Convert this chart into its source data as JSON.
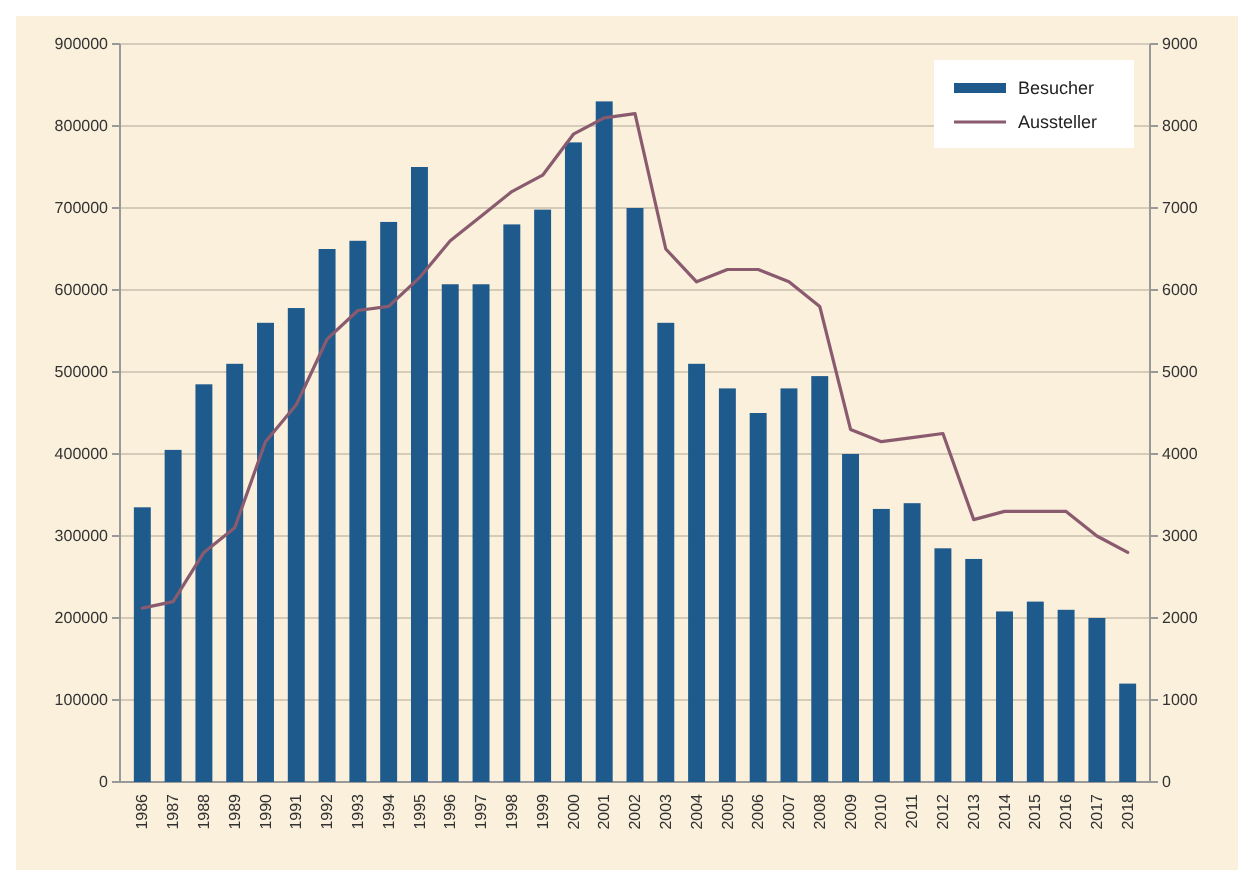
{
  "chart_data": {
    "type": "bar",
    "categories": [
      "1986",
      "1987",
      "1988",
      "1989",
      "1990",
      "1991",
      "1992",
      "1993",
      "1994",
      "1995",
      "1996",
      "1997",
      "1998",
      "1999",
      "2000",
      "2001",
      "2002",
      "2003",
      "2004",
      "2005",
      "2006",
      "2007",
      "2008",
      "2009",
      "2010",
      "2011",
      "2012",
      "2013",
      "2014",
      "2015",
      "2016",
      "2017",
      "2018"
    ],
    "series": [
      {
        "name": "Besucher",
        "color": "#1f5a8c",
        "values": [
          335000,
          405000,
          485000,
          510000,
          560000,
          578000,
          650000,
          660000,
          683000,
          750000,
          607000,
          607000,
          680000,
          698000,
          780000,
          830000,
          700000,
          560000,
          510000,
          480000,
          450000,
          480000,
          495000,
          400000,
          333000,
          340000,
          285000,
          272000,
          208000,
          220000,
          210000,
          200000,
          120000
        ]
      },
      {
        "name": "Aussteller",
        "type": "line",
        "axis": "y2",
        "color": "#8a5a6e",
        "values": [
          2120,
          2200,
          2800,
          3100,
          4150,
          4600,
          5400,
          5750,
          5800,
          6150,
          6600,
          6900,
          7200,
          7400,
          7900,
          8100,
          8150,
          6500,
          6100,
          6250,
          6250,
          6100,
          5800,
          4300,
          4150,
          4200,
          4250,
          3200,
          3300,
          3300,
          3300,
          3000,
          2800
        ]
      }
    ],
    "ylim": [
      0,
      900000
    ],
    "yticks": [
      0,
      100000,
      200000,
      300000,
      400000,
      500000,
      600000,
      700000,
      800000,
      900000
    ],
    "y2lim": [
      0,
      9000
    ],
    "y2ticks": [
      0,
      1000,
      2000,
      3000,
      4000,
      5000,
      6000,
      7000,
      8000,
      9000
    ],
    "grid": "y",
    "legend": "top right"
  }
}
